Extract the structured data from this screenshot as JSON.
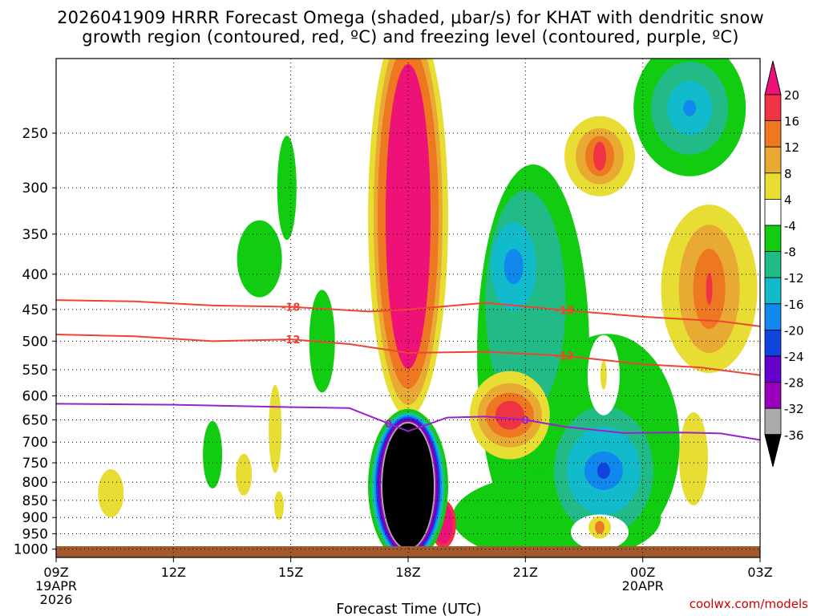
{
  "title_line1": "2026041909 HRRR Forecast Omega (shaded, μbar/s) for KHAT with dendritic snow",
  "title_line2": "growth region (contoured, red, ºC) and freezing level (contoured, purple, ºC)",
  "credit": "coolwx.com/models",
  "chart_data": {
    "type": "heatmap",
    "title": "2026041909 HRRR Forecast Omega (shaded, μbar/s) for KHAT with dendritic snow growth region (contoured, red, ºC) and freezing level (contoured, purple, ºC)",
    "xlabel": "Forecast Time (UTC)",
    "ylabel": "",
    "x_ticks": [
      {
        "hour": 0,
        "label": "09Z",
        "sub": [
          "19APR",
          "2026"
        ]
      },
      {
        "hour": 3,
        "label": "12Z",
        "sub": []
      },
      {
        "hour": 6,
        "label": "15Z",
        "sub": []
      },
      {
        "hour": 9,
        "label": "18Z",
        "sub": []
      },
      {
        "hour": 12,
        "label": "21Z",
        "sub": []
      },
      {
        "hour": 15,
        "label": "00Z",
        "sub": [
          "20APR"
        ]
      },
      {
        "hour": 18,
        "label": "03Z",
        "sub": []
      }
    ],
    "xlim": [
      0,
      18
    ],
    "ylim": [
      1028,
      195
    ],
    "y_ticks": [
      250,
      300,
      350,
      400,
      450,
      500,
      550,
      600,
      650,
      700,
      750,
      800,
      850,
      900,
      950,
      1000
    ],
    "colorbar": {
      "levels": [
        "20",
        "16",
        "12",
        "8",
        "4",
        "-4",
        "-8",
        "-12",
        "-16",
        "-20",
        "-24",
        "-28",
        "-32",
        "-36"
      ],
      "colors": [
        "#ee1177",
        "#ee3344",
        "#ee7722",
        "#e8aa33",
        "#e8dd33",
        "#ffffff",
        "#11cc11",
        "#22bb88",
        "#11bbcc",
        "#1188ee",
        "#1144dd",
        "#6600cc",
        "#9900bb",
        "#aaaaaa",
        "#000000"
      ]
    },
    "contours": [
      {
        "label": "-18",
        "kind": "dendritic",
        "color": "#ee4433",
        "points": [
          [
            0,
            436
          ],
          [
            2,
            438
          ],
          [
            4,
            444
          ],
          [
            6,
            446
          ],
          [
            8,
            453
          ],
          [
            9,
            450
          ],
          [
            11,
            440
          ],
          [
            13,
            451
          ],
          [
            15,
            461
          ],
          [
            17,
            468
          ],
          [
            18,
            476
          ]
        ]
      },
      {
        "label": "-12",
        "kind": "dendritic",
        "color": "#ee4433",
        "points": [
          [
            0,
            489
          ],
          [
            2,
            492
          ],
          [
            4,
            500
          ],
          [
            6,
            497
          ],
          [
            7.5,
            505
          ],
          [
            9,
            520
          ],
          [
            11,
            518
          ],
          [
            13,
            525
          ],
          [
            15,
            540
          ],
          [
            16.5,
            546
          ],
          [
            18,
            560
          ]
        ]
      },
      {
        "label": "0",
        "kind": "freezing",
        "color": "#9922cc",
        "points": [
          [
            0,
            616
          ],
          [
            3,
            618
          ],
          [
            6,
            623
          ],
          [
            7.5,
            625
          ],
          [
            8.5,
            658
          ],
          [
            9,
            675
          ],
          [
            9.5,
            660
          ],
          [
            10,
            645
          ],
          [
            11,
            643
          ],
          [
            12,
            650
          ],
          [
            13,
            665
          ],
          [
            14.5,
            679
          ],
          [
            16,
            678
          ],
          [
            17,
            680
          ],
          [
            18,
            695
          ]
        ]
      }
    ],
    "features": [
      {
        "kind": "updraft core",
        "x": 9,
        "p": 330,
        "value": "20"
      },
      {
        "kind": "downdraft core",
        "x": 9,
        "p": 835,
        "value": "-36"
      },
      {
        "kind": "updraft",
        "x": 12,
        "p": 660,
        "value": "16"
      },
      {
        "kind": "downdraft",
        "x": 14,
        "p": 765,
        "value": "-28"
      },
      {
        "kind": "downdraft",
        "x": 16,
        "p": 230,
        "value": "-24"
      }
    ]
  }
}
